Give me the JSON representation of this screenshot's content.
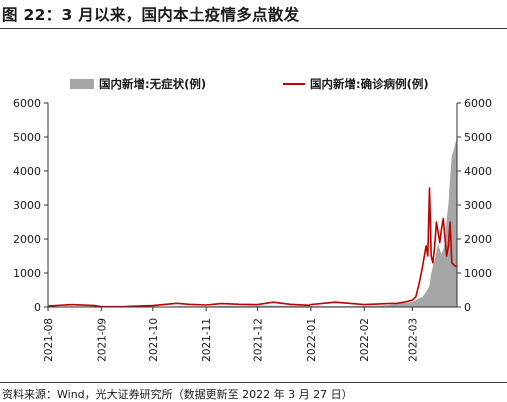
{
  "figure_title": "图 22：3 月以来，国内本土疫情多点散发",
  "source_note": "资料来源：Wind，光大证券研究所（数据更新至 2022 年 3 月 27 日）",
  "chart_data": {
    "type": "area",
    "x": [
      "2021-08-01",
      "2021-08-15",
      "2021-08-28",
      "2021-09-01",
      "2021-09-15",
      "2021-10-01",
      "2021-10-15",
      "2021-10-22",
      "2021-11-01",
      "2021-11-10",
      "2021-11-20",
      "2021-12-01",
      "2021-12-10",
      "2021-12-20",
      "2021-12-31",
      "2022-01-01",
      "2022-01-15",
      "2022-01-25",
      "2022-02-01",
      "2022-02-10",
      "2022-02-15",
      "2022-02-20",
      "2022-02-25",
      "2022-03-01",
      "2022-03-03",
      "2022-03-05",
      "2022-03-07",
      "2022-03-09",
      "2022-03-10",
      "2022-03-11",
      "2022-03-12",
      "2022-03-13",
      "2022-03-14",
      "2022-03-15",
      "2022-03-16",
      "2022-03-17",
      "2022-03-18",
      "2022-03-19",
      "2022-03-20",
      "2022-03-21",
      "2022-03-22",
      "2022-03-23",
      "2022-03-24",
      "2022-03-25",
      "2022-03-26",
      "2022-03-27"
    ],
    "series": [
      {
        "name": "国内新增:无症状(例)",
        "kind": "area",
        "axis": "left",
        "color": "#a6a6a6",
        "values": [
          10,
          20,
          15,
          5,
          5,
          10,
          20,
          20,
          20,
          30,
          30,
          40,
          40,
          35,
          30,
          25,
          25,
          25,
          30,
          40,
          60,
          90,
          120,
          150,
          200,
          260,
          300,
          450,
          520,
          640,
          980,
          1200,
          1400,
          1600,
          1860,
          1700,
          1550,
          1700,
          1900,
          2600,
          3000,
          3800,
          4450,
          4600,
          4800,
          5000
        ]
      },
      {
        "name": "国内新增:确诊病例(例)",
        "kind": "line",
        "axis": "right",
        "color": "#c00000",
        "values": [
          30,
          70,
          40,
          10,
          15,
          40,
          110,
          80,
          60,
          100,
          80,
          70,
          140,
          80,
          50,
          70,
          140,
          100,
          70,
          90,
          100,
          110,
          150,
          200,
          300,
          700,
          1200,
          1800,
          1500,
          3500,
          1500,
          1300,
          1800,
          2500,
          2200,
          1900,
          2300,
          2600,
          2000,
          1500,
          1800,
          2500,
          1300,
          1250,
          1200,
          1200
        ]
      }
    ],
    "y_left": {
      "min": 0,
      "max": 6000,
      "ticks": [
        0,
        1000,
        2000,
        3000,
        4000,
        5000,
        6000
      ]
    },
    "y_right": {
      "min": 0,
      "max": 6000,
      "ticks": [
        0,
        1000,
        2000,
        3000,
        4000,
        5000,
        6000
      ]
    },
    "x_ticks": [
      "2021-08",
      "2021-09",
      "2021-10",
      "2021-11",
      "2021-12",
      "2022-01",
      "2022-02",
      "2022-03"
    ],
    "legend": [
      "国内新增:无症状(例)",
      "国内新增:确诊病例(例)"
    ],
    "legend_position": "top",
    "grid": false,
    "title": ""
  }
}
